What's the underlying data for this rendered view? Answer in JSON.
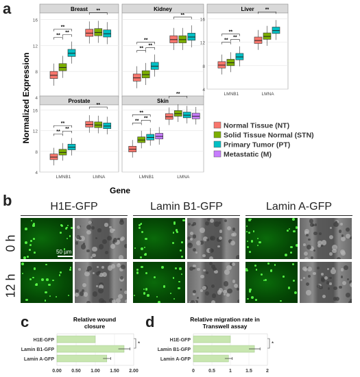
{
  "panel_labels": {
    "a": "a",
    "b": "b",
    "c": "c",
    "d": "d"
  },
  "panel_a": {
    "ylabel": "Normalized Expression",
    "xlabel": "Gene",
    "legend": [
      {
        "label": "Normal Tissue (NT)",
        "color": "#F8766D"
      },
      {
        "label": "Solid Tissue Normal (STN)",
        "color": "#7CAE00"
      },
      {
        "label": "Primary Tumor (PT)",
        "color": "#00BFC4"
      },
      {
        "label": "Metastatic (M)",
        "color": "#C77CFF"
      }
    ]
  },
  "panel_b": {
    "columns": [
      "H1E-GFP",
      "Lamin B1-GFP",
      "Lamin A-GFP"
    ],
    "rows": [
      "0 h",
      "12 h"
    ],
    "scale_bar": "50 µm"
  },
  "chart_data": [
    {
      "type": "box",
      "facet": "Breast",
      "categories": [
        "LMNB1",
        "LMNA"
      ],
      "series": [
        {
          "name": "Normal Tissue (NT)",
          "medians": [
            7.4,
            13.9
          ]
        },
        {
          "name": "Solid Tissue Normal (STN)",
          "medians": [
            8.6,
            14.0
          ]
        },
        {
          "name": "Primary Tumor (PT)",
          "medians": [
            10.8,
            13.8
          ]
        }
      ],
      "ylim": [
        4,
        17
      ],
      "yticks": [
        4,
        8,
        12,
        16
      ],
      "significance": "**"
    },
    {
      "type": "box",
      "facet": "Kidney",
      "categories": [
        "LMNB1",
        "LMNA"
      ],
      "series": [
        {
          "name": "Normal Tissue (NT)",
          "medians": [
            7.0,
            12.9
          ]
        },
        {
          "name": "Solid Tissue Normal (STN)",
          "medians": [
            7.5,
            12.9
          ]
        },
        {
          "name": "Primary Tumor (PT)",
          "medians": [
            8.8,
            13.3
          ]
        }
      ],
      "ylim": [
        4,
        17
      ],
      "yticks": [
        4,
        8,
        12,
        16
      ],
      "significance": "**"
    },
    {
      "type": "box",
      "facet": "Liver",
      "categories": [
        "LMNB1",
        "LMNA"
      ],
      "series": [
        {
          "name": "Normal Tissue (NT)",
          "medians": [
            8.1,
            12.3
          ]
        },
        {
          "name": "Solid Tissue Normal (STN)",
          "medians": [
            8.5,
            13.0
          ]
        },
        {
          "name": "Primary Tumor (PT)",
          "medians": [
            9.5,
            14.0
          ]
        }
      ],
      "ylim": [
        4,
        17
      ],
      "yticks": [
        4,
        8,
        12,
        16
      ],
      "significance": "**"
    },
    {
      "type": "box",
      "facet": "Prostate",
      "categories": [
        "LMNB1",
        "LMNA"
      ],
      "series": [
        {
          "name": "Normal Tissue (NT)",
          "medians": [
            6.9,
            13.2
          ]
        },
        {
          "name": "Solid Tissue Normal (STN)",
          "medians": [
            7.8,
            13.1
          ]
        },
        {
          "name": "Primary Tumor (PT)",
          "medians": [
            8.8,
            12.9
          ]
        }
      ],
      "ylim": [
        4,
        17
      ],
      "yticks": [
        4,
        8,
        12,
        16
      ],
      "significance": "**"
    },
    {
      "type": "box",
      "facet": "Skin",
      "categories": [
        "LMNB1",
        "LMNA"
      ],
      "series": [
        {
          "name": "Normal Tissue (NT)",
          "medians": [
            8.4,
            14.7
          ]
        },
        {
          "name": "Solid Tissue Normal (STN)",
          "medians": [
            10.2,
            15.3
          ]
        },
        {
          "name": "Primary Tumor (PT)",
          "medians": [
            10.7,
            15.0
          ]
        },
        {
          "name": "Metastatic (M)",
          "medians": [
            10.9,
            14.8
          ]
        }
      ],
      "ylim": [
        4,
        17
      ],
      "yticks": [
        4,
        8,
        12,
        16
      ],
      "significance": "**"
    },
    {
      "type": "bar",
      "orientation": "horizontal",
      "title": "Relative wound closure",
      "categories": [
        "H1E-GFP",
        "Lamin B1-GFP",
        "Lamin A-GFP"
      ],
      "values": [
        1.0,
        1.75,
        1.3
      ],
      "errors": [
        0,
        0.15,
        0.1
      ],
      "xticks": [
        "0.00",
        "0.50",
        "1.00",
        "1.50",
        "2.00"
      ],
      "xlim": [
        0,
        2
      ],
      "significance": "*"
    },
    {
      "type": "bar",
      "orientation": "horizontal",
      "title": "Relative migration rate in Transwell assay",
      "categories": [
        "H1E-GFP",
        "Lamin B1-GFP",
        "Lamin A-GFP"
      ],
      "values": [
        1.0,
        1.65,
        0.95
      ],
      "errors": [
        0,
        0.15,
        0.1
      ],
      "xticks": [
        "0",
        "0.5",
        "1",
        "1.5",
        "2"
      ],
      "xlim": [
        0,
        2
      ],
      "significance": "*"
    }
  ]
}
